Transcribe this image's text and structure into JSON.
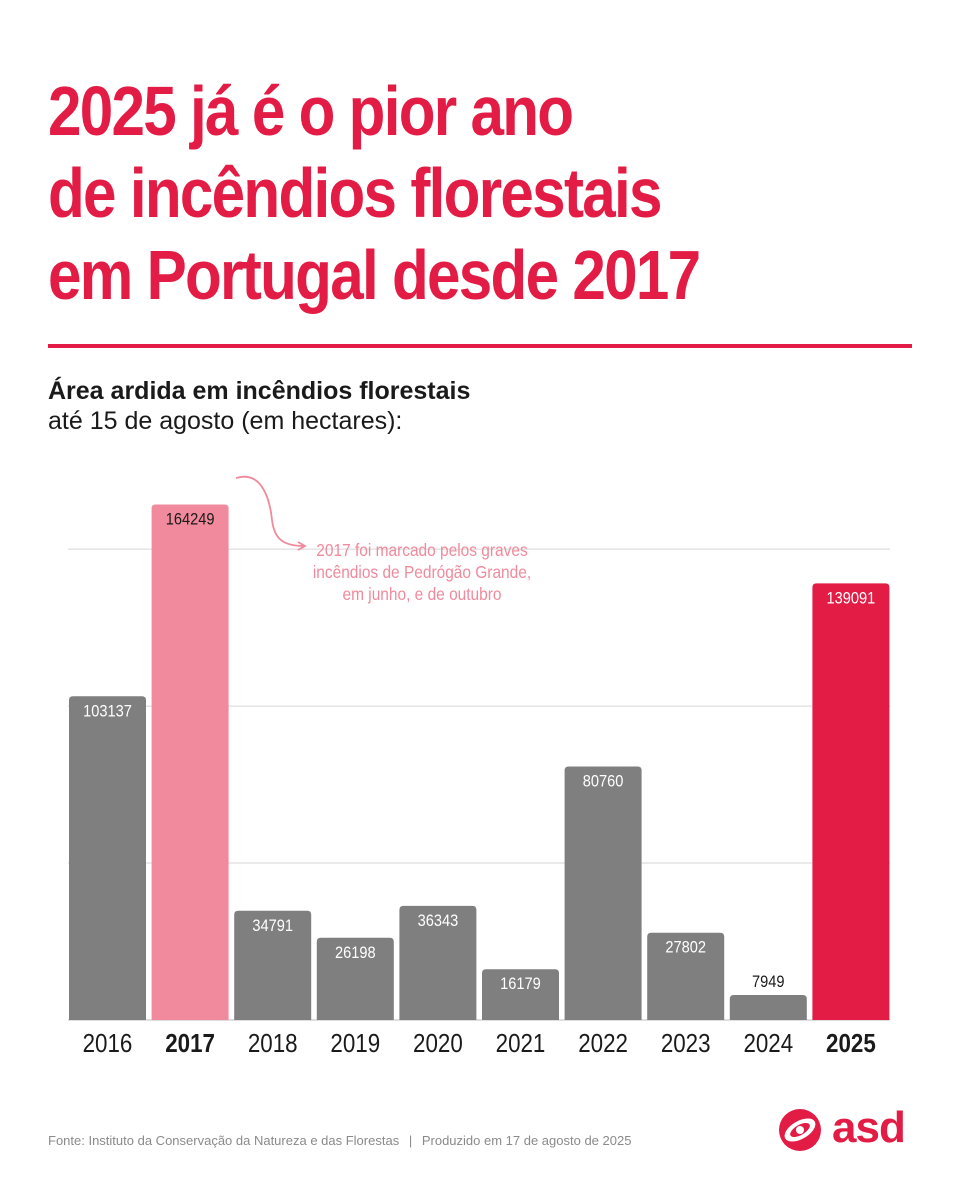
{
  "title": {
    "line1": "2025 já é o pior ano",
    "line2": "de incêndios florestais",
    "line3": "em Portugal desde 2017"
  },
  "subtitle": {
    "bold": "Área ardida em incêndios florestais",
    "light": "até 15 de agosto (em hectares):"
  },
  "colors": {
    "accent": "#e31c45",
    "highlight_2017": "#f08a9c",
    "bar_default": "#7f7f7f",
    "gridline": "#d6d6d6"
  },
  "chart_data": {
    "type": "bar",
    "categories": [
      "2016",
      "2017",
      "2018",
      "2019",
      "2020",
      "2021",
      "2022",
      "2023",
      "2024",
      "2025"
    ],
    "values": [
      103137,
      164249,
      34791,
      26198,
      36343,
      16179,
      80760,
      27802,
      7949,
      139091
    ],
    "highlighted": [
      "2017",
      "2025"
    ],
    "ylim": [
      0,
      180000
    ],
    "gridlines": [
      50000,
      100000,
      150000
    ],
    "grid": true,
    "annotation": {
      "category": "2017",
      "lines": [
        "2017 foi marcado pelos graves",
        "incêndios de Pedrógão Grande,",
        "em junho, e de outubro"
      ]
    }
  },
  "footer": {
    "source": "Fonte: Instituto da Conservação da Natureza e das Florestas",
    "separator": "|",
    "produced": "Produzido em 17 de agosto de 2025"
  },
  "logo": {
    "text": "asd",
    "icon": "asd-logo-icon"
  }
}
